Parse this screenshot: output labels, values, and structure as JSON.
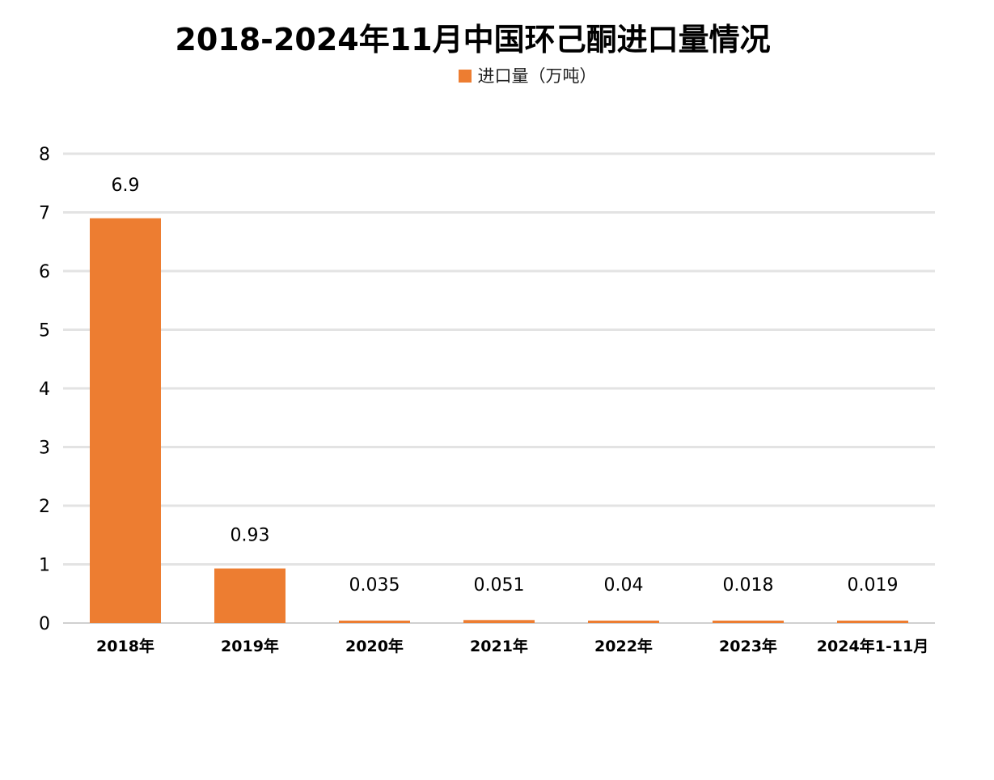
{
  "chart_data": {
    "type": "bar",
    "title": "2018-2024年11月中国环己酮进口量情况",
    "legend": {
      "position": "top-center"
    },
    "categories": [
      "2018年",
      "2019年",
      "2020年",
      "2021年",
      "2022年",
      "2023年",
      "2024年1-11月"
    ],
    "series": [
      {
        "name": "进口量（万吨）",
        "color": "#ED7D31",
        "values": [
          6.9,
          0.93,
          0.035,
          0.051,
          0.04,
          0.018,
          0.019
        ],
        "labels": [
          "6.9",
          "0.93",
          "0.035",
          "0.051",
          "0.04",
          "0.018",
          "0.019"
        ]
      }
    ],
    "ylim": [
      0,
      8
    ],
    "yticks": [
      0,
      1,
      2,
      3,
      4,
      5,
      6,
      7,
      8
    ],
    "grid": true,
    "xlabel": "",
    "ylabel": ""
  }
}
